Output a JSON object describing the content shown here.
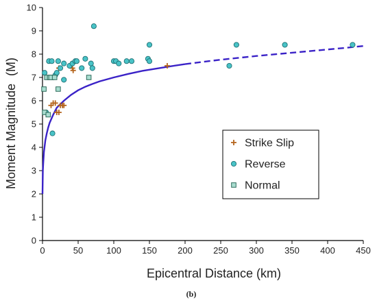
{
  "caption": "(b)",
  "colors": {
    "strike_slip": "#b5651d",
    "reverse_fill": "#49c3c7",
    "reverse_stroke": "#1d6f73",
    "normal_fill": "#a9ddd0",
    "normal_stroke": "#2e6b5b",
    "curve": "#3a22c7",
    "axis": "#000000"
  },
  "chart_data": {
    "type": "scatter",
    "xlabel": "Epicentral Distance (km)",
    "ylabel": "Moment Magnitude",
    "ylabel_suffix": "(M)",
    "xlim": [
      0,
      450
    ],
    "ylim": [
      0,
      10
    ],
    "xticks": [
      0,
      50,
      100,
      150,
      200,
      250,
      300,
      350,
      400,
      450
    ],
    "yticks": [
      0,
      1,
      2,
      3,
      4,
      5,
      6,
      7,
      8,
      9,
      10
    ],
    "grid": false,
    "legend_placement": "center-right",
    "series": [
      {
        "name": "Strike Slip",
        "marker": "plus",
        "points": [
          [
            12,
            5.8
          ],
          [
            15,
            5.9
          ],
          [
            18,
            5.9
          ],
          [
            20,
            5.5
          ],
          [
            23,
            5.5
          ],
          [
            25,
            5.8
          ],
          [
            28,
            5.8
          ],
          [
            30,
            5.8
          ],
          [
            23,
            7.4
          ],
          [
            42,
            7.4
          ],
          [
            43,
            7.3
          ],
          [
            175,
            7.5
          ]
        ]
      },
      {
        "name": "Reverse",
        "marker": "circle",
        "points": [
          [
            3,
            7.2
          ],
          [
            5,
            5.5
          ],
          [
            9,
            7.7
          ],
          [
            13,
            7.7
          ],
          [
            14,
            4.6
          ],
          [
            15,
            7.0
          ],
          [
            18,
            7.1
          ],
          [
            20,
            7.2
          ],
          [
            22,
            7.7
          ],
          [
            25,
            7.4
          ],
          [
            30,
            7.6
          ],
          [
            30,
            6.9
          ],
          [
            38,
            7.5
          ],
          [
            42,
            7.6
          ],
          [
            46,
            7.7
          ],
          [
            48,
            7.7
          ],
          [
            55,
            7.4
          ],
          [
            60,
            7.8
          ],
          [
            68,
            7.6
          ],
          [
            70,
            7.4
          ],
          [
            72,
            9.2
          ],
          [
            100,
            7.7
          ],
          [
            103,
            7.7
          ],
          [
            107,
            7.6
          ],
          [
            118,
            7.7
          ],
          [
            125,
            7.7
          ],
          [
            148,
            7.8
          ],
          [
            150,
            8.4
          ],
          [
            150,
            7.7
          ],
          [
            262,
            7.5
          ],
          [
            272,
            8.4
          ],
          [
            340,
            8.4
          ],
          [
            435,
            8.4
          ]
        ]
      },
      {
        "name": "Normal",
        "marker": "square",
        "points": [
          [
            2,
            6.5
          ],
          [
            3,
            5.5
          ],
          [
            6,
            7.0
          ],
          [
            8,
            5.4
          ],
          [
            10,
            7.0
          ],
          [
            12,
            7.0
          ],
          [
            17,
            7.0
          ],
          [
            22,
            6.5
          ],
          [
            65,
            7.0
          ]
        ]
      }
    ],
    "curve": {
      "style": "solid to 200 km, dashed beyond",
      "points": [
        [
          0,
          2.0
        ],
        [
          0.5,
          3.0
        ],
        [
          1,
          3.3
        ],
        [
          2,
          3.8
        ],
        [
          4,
          4.3
        ],
        [
          6,
          4.6
        ],
        [
          8,
          4.85
        ],
        [
          10,
          5.05
        ],
        [
          15,
          5.4
        ],
        [
          20,
          5.7
        ],
        [
          30,
          6.0
        ],
        [
          40,
          6.25
        ],
        [
          50,
          6.45
        ],
        [
          60,
          6.6
        ],
        [
          70,
          6.72
        ],
        [
          80,
          6.83
        ],
        [
          100,
          7.0
        ],
        [
          120,
          7.15
        ],
        [
          140,
          7.28
        ],
        [
          160,
          7.38
        ],
        [
          180,
          7.48
        ],
        [
          200,
          7.57
        ],
        [
          225,
          7.67
        ],
        [
          250,
          7.76
        ],
        [
          275,
          7.84
        ],
        [
          300,
          7.92
        ],
        [
          325,
          7.99
        ],
        [
          350,
          8.06
        ],
        [
          375,
          8.13
        ],
        [
          400,
          8.2
        ],
        [
          425,
          8.27
        ],
        [
          450,
          8.35
        ]
      ],
      "dash_start_x": 200
    }
  }
}
